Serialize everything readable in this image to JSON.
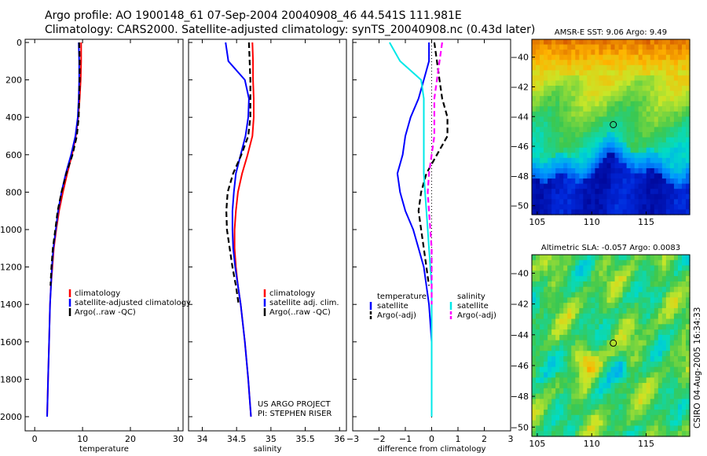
{
  "header": {
    "title_line1": "Argo profile: AO 1900148_61 07-Sep-2004 20040908_46 44.541S 111.981E",
    "title_line2": "Climatology: CARS2000. Satellite-adjusted climatology: synTS_20040908.nc (0.43d later)"
  },
  "credit": "CSIRO 04-Aug-2005 16:34:33",
  "project_text": [
    "US ARGO PROJECT",
    "PI: STEPHEN RISER"
  ],
  "colors": {
    "climatology": "#ff0000",
    "satellite": "#0000ff",
    "argo": "#000000",
    "salinity_satellite": "#00e8e8",
    "salinity_argo": "#ff00ff"
  },
  "chart_data": [
    {
      "type": "line",
      "xlabel": "temperature",
      "ylim": [
        0,
        2000
      ],
      "y_reversed": true,
      "yticks": [
        0,
        200,
        400,
        600,
        800,
        1000,
        1200,
        1400,
        1600,
        1800,
        2000
      ],
      "xlim": [
        -2,
        31
      ],
      "xticks": [
        0,
        10,
        20,
        30
      ],
      "legend": [
        "climatology",
        "satellite-adjusted climatology",
        "Argo(..raw -QC)"
      ],
      "series": [
        {
          "name": "climatology",
          "style": "solid",
          "color": "#ff0000",
          "x": [
            9.7,
            9.7,
            9.6,
            9.4,
            9.1,
            8.6,
            7.8,
            6.8,
            5.9,
            5.1,
            4.5,
            4.0,
            3.7,
            3.4,
            3.2,
            3.0,
            2.8,
            2.6
          ],
          "y": [
            0,
            100,
            200,
            300,
            400,
            500,
            600,
            700,
            800,
            900,
            1000,
            1100,
            1200,
            1300,
            1400,
            1600,
            1800,
            2000
          ]
        },
        {
          "name": "satellite-adjusted climatology",
          "style": "solid",
          "color": "#0000ff",
          "x": [
            9.2,
            9.3,
            9.3,
            9.2,
            9.0,
            8.5,
            7.6,
            6.5,
            5.6,
            4.9,
            4.4,
            3.9,
            3.6,
            3.4,
            3.2,
            3.0,
            2.8,
            2.6
          ],
          "y": [
            0,
            100,
            200,
            300,
            400,
            500,
            600,
            700,
            800,
            900,
            1000,
            1100,
            1200,
            1300,
            1400,
            1600,
            1800,
            2000
          ]
        },
        {
          "name": "Argo(..raw -QC)",
          "style": "dashed",
          "color": "#000000",
          "x": [
            9.3,
            9.4,
            9.4,
            9.3,
            9.2,
            8.8,
            7.9,
            6.6,
            5.6,
            4.8,
            4.3,
            3.8,
            3.5,
            3.3
          ],
          "y": [
            0,
            100,
            200,
            300,
            400,
            500,
            600,
            700,
            800,
            900,
            1000,
            1100,
            1200,
            1300
          ]
        }
      ]
    },
    {
      "type": "line",
      "xlabel": "salinity",
      "ylim": [
        0,
        2000
      ],
      "y_reversed": true,
      "xlim": [
        33.8,
        36.1
      ],
      "xticks": [
        34,
        34.5,
        35,
        35.5,
        36
      ],
      "legend": [
        "climatology",
        "satellite adj. clim.",
        "Argo(..raw -QC)"
      ],
      "series": [
        {
          "name": "climatology",
          "style": "solid",
          "color": "#ff0000",
          "x": [
            34.73,
            34.74,
            34.74,
            34.75,
            34.75,
            34.73,
            34.66,
            34.58,
            34.52,
            34.49,
            34.47,
            34.47,
            34.49,
            34.52,
            34.56,
            34.62,
            34.67,
            34.71
          ],
          "y": [
            0,
            100,
            200,
            300,
            400,
            500,
            600,
            700,
            800,
            900,
            1000,
            1100,
            1200,
            1300,
            1400,
            1600,
            1800,
            2000
          ]
        },
        {
          "name": "satellite adj. clim.",
          "style": "solid",
          "color": "#0000ff",
          "x": [
            34.34,
            34.38,
            34.62,
            34.68,
            34.67,
            34.63,
            34.56,
            34.49,
            34.46,
            34.44,
            34.44,
            34.45,
            34.48,
            34.52,
            34.56,
            34.62,
            34.67,
            34.71
          ],
          "y": [
            0,
            100,
            200,
            300,
            400,
            500,
            600,
            700,
            800,
            900,
            1000,
            1100,
            1200,
            1300,
            1400,
            1600,
            1800,
            2000
          ]
        },
        {
          "name": "Argo(..raw -QC)",
          "style": "dashed",
          "color": "#000000",
          "x": [
            34.68,
            34.69,
            34.7,
            34.7,
            34.7,
            34.67,
            34.57,
            34.45,
            34.37,
            34.35,
            34.36,
            34.4,
            34.44,
            34.49,
            34.53
          ],
          "y": [
            0,
            100,
            200,
            300,
            400,
            500,
            600,
            700,
            800,
            900,
            1000,
            1100,
            1200,
            1300,
            1400
          ]
        }
      ],
      "annotation": [
        "US ARGO PROJECT",
        "PI: STEPHEN RISER"
      ]
    },
    {
      "type": "line",
      "xlabel": "difference from climatology",
      "ylim": [
        0,
        2000
      ],
      "y_reversed": true,
      "xlim": [
        -3,
        3
      ],
      "xticks": [
        -3,
        -2,
        -1,
        0,
        1,
        2,
        3
      ],
      "zero_line": "dotted",
      "legend_groups": [
        {
          "heading": "temperature",
          "entries": [
            "satellite",
            "Argo(-adj)"
          ]
        },
        {
          "heading": "salinity",
          "entries": [
            "satellite",
            "Argo(-adj)"
          ]
        }
      ],
      "series": [
        {
          "name": "temperature satellite",
          "style": "solid",
          "color": "#0000ff",
          "x": [
            -0.1,
            -0.1,
            -0.3,
            -0.5,
            -0.8,
            -1.0,
            -1.1,
            -1.3,
            -1.2,
            -1.0,
            -0.7,
            -0.5,
            -0.3,
            -0.2,
            -0.1,
            0.0,
            0.0,
            0.0
          ],
          "y": [
            0,
            100,
            200,
            300,
            400,
            500,
            600,
            700,
            800,
            900,
            1000,
            1100,
            1200,
            1300,
            1400,
            1600,
            1800,
            2000
          ]
        },
        {
          "name": "temperature Argo(-adj)",
          "style": "dashed",
          "color": "#000000",
          "x": [
            0.1,
            0.2,
            0.3,
            0.4,
            0.6,
            0.6,
            0.2,
            -0.2,
            -0.4,
            -0.5,
            -0.4,
            -0.3,
            -0.2,
            -0.1
          ],
          "y": [
            0,
            100,
            200,
            300,
            400,
            500,
            600,
            700,
            800,
            900,
            1000,
            1100,
            1200,
            1300
          ]
        },
        {
          "name": "salinity satellite",
          "style": "solid",
          "color": "#00e8e8",
          "x": [
            -1.6,
            -1.2,
            -0.4,
            -0.3,
            -0.3,
            -0.3,
            -0.3,
            -0.3,
            -0.25,
            -0.2,
            -0.15,
            -0.1,
            -0.05,
            0.0,
            0.0,
            0.0,
            0.0,
            0.0
          ],
          "y": [
            0,
            100,
            200,
            300,
            400,
            500,
            600,
            700,
            800,
            900,
            1000,
            1100,
            1200,
            1300,
            1400,
            1600,
            1800,
            2000
          ]
        },
        {
          "name": "salinity Argo(-adj)",
          "style": "dashed",
          "color": "#ff00ff",
          "x": [
            0.4,
            0.3,
            0.2,
            0.1,
            0.1,
            0.1,
            0.0,
            -0.1,
            -0.15,
            -0.1,
            -0.05,
            0.0,
            0.0,
            0.0,
            0.0
          ],
          "y": [
            0,
            100,
            200,
            300,
            400,
            500,
            600,
            700,
            800,
            900,
            1000,
            1100,
            1200,
            1300,
            1400
          ]
        }
      ]
    },
    {
      "type": "heatmap",
      "title": "AMSR-E SST: 9.06 Argo: 9.49",
      "xlim": [
        104.5,
        119
      ],
      "xticks": [
        105,
        110,
        115
      ],
      "ylim": [
        -50.6,
        -38.8
      ],
      "yticks": [
        -40,
        -42,
        -44,
        -46,
        -48,
        -50
      ],
      "marker": {
        "lon": 111.981,
        "lat": -44.541
      }
    },
    {
      "type": "heatmap",
      "title": "Altimetric SLA: -0.057 Argo: 0.0083",
      "xlim": [
        104.5,
        119
      ],
      "xticks": [
        105,
        110,
        115
      ],
      "ylim": [
        -50.6,
        -38.8
      ],
      "yticks": [
        -40,
        -42,
        -44,
        -46,
        -48,
        -50
      ],
      "marker": {
        "lon": 111.981,
        "lat": -44.541
      }
    }
  ]
}
